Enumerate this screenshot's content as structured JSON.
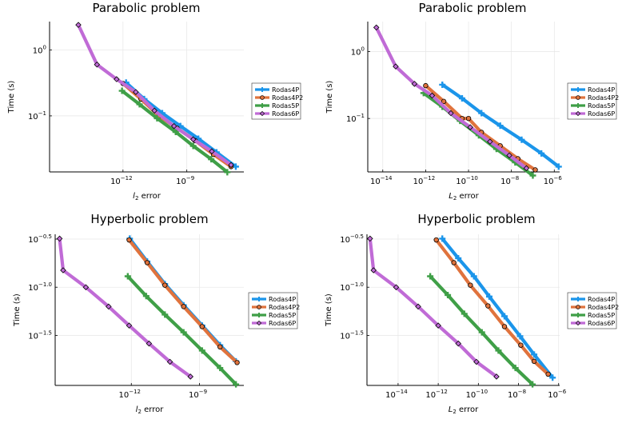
{
  "colors": {
    "Rodas4P": "#1b95ea",
    "Rodas4P2": "#e0733d",
    "Rodas5P": "#3f9f47",
    "Rodas6P": "#c06bd6"
  },
  "legend": [
    "Rodas4P",
    "Rodas4P2",
    "Rodas5P",
    "Rodas6P"
  ],
  "chart_data": [
    {
      "type": "line",
      "title": "Parabolic problem",
      "xlabel": "l2 error",
      "ylabel": "Time (s)",
      "xscale": "log",
      "yscale": "log",
      "legend_position": "outside-right",
      "xticks": [
        {
          "label": "10",
          "exp": "−12",
          "v": 1e-12
        },
        {
          "label": "10",
          "exp": "−9",
          "v": 1e-09
        }
      ],
      "yticks": [
        {
          "label": "10",
          "exp": "−1",
          "v": 0.1
        },
        {
          "label": "10",
          "exp": "0",
          "v": 1
        }
      ],
      "series": [
        {
          "name": "Rodas4P",
          "marker": "cross",
          "points": [
            [
              1.4e-12,
              0.32
            ],
            [
              1e-11,
              0.18
            ],
            [
              7e-11,
              0.11
            ],
            [
              5e-10,
              0.07
            ],
            [
              3.5e-09,
              0.045
            ],
            [
              2.5e-08,
              0.028
            ],
            [
              2e-07,
              0.017
            ]
          ]
        },
        {
          "name": "Rodas4P2",
          "marker": "circle",
          "points": [
            [
              1e-12,
              0.31
            ],
            [
              7e-12,
              0.18
            ],
            [
              5e-11,
              0.1
            ],
            [
              3.5e-10,
              0.065
            ],
            [
              2.5e-09,
              0.042
            ],
            [
              1.8e-08,
              0.026
            ],
            [
              1.2e-07,
              0.017
            ]
          ]
        },
        {
          "name": "Rodas5P",
          "marker": "cross",
          "points": [
            [
              9e-13,
              0.24
            ],
            [
              6e-12,
              0.15
            ],
            [
              4e-11,
              0.092
            ],
            [
              3e-10,
              0.057
            ],
            [
              2e-09,
              0.035
            ],
            [
              1.4e-08,
              0.022
            ],
            [
              8e-08,
              0.014
            ]
          ]
        },
        {
          "name": "Rodas6P",
          "marker": "diamond",
          "points": [
            [
              8e-15,
              2.4
            ],
            [
              6e-14,
              0.6
            ],
            [
              5e-13,
              0.36
            ],
            [
              4e-12,
              0.23
            ],
            [
              3e-11,
              0.12
            ],
            [
              2.5e-10,
              0.07
            ],
            [
              2e-09,
              0.044
            ],
            [
              1.5e-08,
              0.029
            ],
            [
              1.2e-07,
              0.018
            ]
          ]
        }
      ]
    },
    {
      "type": "line",
      "title": "Parabolic problem",
      "xlabel": "L2 error",
      "ylabel": "Time (s)",
      "xscale": "log",
      "yscale": "log",
      "legend_position": "outside-right",
      "xticks": [
        {
          "label": "10",
          "exp": "−14",
          "v": 1e-14
        },
        {
          "label": "10",
          "exp": "−12",
          "v": 1e-12
        },
        {
          "label": "10",
          "exp": "−10",
          "v": 1e-10
        },
        {
          "label": "10",
          "exp": "−8",
          "v": 1e-08
        },
        {
          "label": "10",
          "exp": "−6",
          "v": 1e-06
        }
      ],
      "yticks": [
        {
          "label": "10",
          "exp": "−1",
          "v": 0.1
        },
        {
          "label": "10",
          "exp": "0",
          "v": 1
        }
      ],
      "series": [
        {
          "name": "Rodas4P",
          "marker": "cross",
          "points": [
            [
              6e-12,
              0.32
            ],
            [
              5e-11,
              0.2
            ],
            [
              4e-10,
              0.12
            ],
            [
              3e-09,
              0.078
            ],
            [
              3e-08,
              0.048
            ],
            [
              2.5e-07,
              0.03
            ],
            [
              1.6e-06,
              0.019
            ]
          ]
        },
        {
          "name": "Rodas4P2",
          "marker": "circle",
          "points": [
            [
              1e-12,
              0.31
            ],
            [
              7e-12,
              0.18
            ],
            [
              5e-11,
              0.1
            ],
            [
              1e-10,
              0.1
            ],
            [
              4e-10,
              0.062
            ],
            [
              3e-09,
              0.039
            ],
            [
              2e-08,
              0.025
            ],
            [
              1.3e-07,
              0.017
            ]
          ]
        },
        {
          "name": "Rodas5P",
          "marker": "cross",
          "points": [
            [
              8e-13,
              0.24
            ],
            [
              6e-12,
              0.15
            ],
            [
              4e-11,
              0.092
            ],
            [
              3e-10,
              0.056
            ],
            [
              2e-09,
              0.035
            ],
            [
              1.5e-08,
              0.022
            ],
            [
              1e-07,
              0.014
            ]
          ]
        },
        {
          "name": "Rodas6P",
          "marker": "diamond",
          "points": [
            [
              5e-15,
              2.3
            ],
            [
              4e-14,
              0.6
            ],
            [
              3e-13,
              0.33
            ],
            [
              2e-12,
              0.22
            ],
            [
              1.5e-11,
              0.12
            ],
            [
              1.2e-10,
              0.074
            ],
            [
              1e-09,
              0.045
            ],
            [
              8e-09,
              0.028
            ],
            [
              5e-08,
              0.018
            ]
          ]
        }
      ]
    },
    {
      "type": "line",
      "title": "Hyperbolic problem",
      "xlabel": "l2 error",
      "ylabel": "Time (s)",
      "xscale": "log",
      "yscale": "log",
      "legend_position": "outside-right",
      "xticks": [
        {
          "label": "10",
          "exp": "−12",
          "v": 1e-12
        },
        {
          "label": "10",
          "exp": "−9",
          "v": 1e-09
        }
      ],
      "yticks": [
        {
          "label": "10",
          "exp": "−1.5",
          "v": 0.031623
        },
        {
          "label": "10",
          "exp": "−1.0",
          "v": 0.1
        },
        {
          "label": "10",
          "exp": "−0.5",
          "v": 0.316228
        }
      ],
      "series": [
        {
          "name": "Rodas4P",
          "marker": "cross",
          "points": [
            [
              8.5e-13,
              0.32
            ],
            [
              5e-12,
              0.185
            ],
            [
              3e-11,
              0.108
            ],
            [
              2e-10,
              0.065
            ],
            [
              1.3e-09,
              0.04
            ],
            [
              8e-09,
              0.025
            ],
            [
              4e-08,
              0.017
            ]
          ]
        },
        {
          "name": "Rodas4P2",
          "marker": "circle",
          "points": [
            [
              8e-13,
              0.31
            ],
            [
              5e-12,
              0.18
            ],
            [
              3e-11,
              0.105
            ],
            [
              2e-10,
              0.063
            ],
            [
              1.3e-09,
              0.039
            ],
            [
              8e-09,
              0.024
            ],
            [
              4.5e-08,
              0.0165
            ]
          ]
        },
        {
          "name": "Rodas5P",
          "marker": "cross",
          "points": [
            [
              7e-13,
              0.13
            ],
            [
              4.5e-12,
              0.081
            ],
            [
              3e-11,
              0.052
            ],
            [
              2e-10,
              0.034
            ],
            [
              1.3e-09,
              0.022
            ],
            [
              8e-09,
              0.0145
            ],
            [
              4e-08,
              0.0098
            ]
          ]
        },
        {
          "name": "Rodas6P",
          "marker": "diamond",
          "points": [
            [
              7e-16,
              0.32
            ],
            [
              1e-15,
              0.15
            ],
            [
              1e-14,
              0.1
            ],
            [
              1e-13,
              0.063
            ],
            [
              8e-13,
              0.04
            ],
            [
              6e-12,
              0.026
            ],
            [
              5e-11,
              0.0168
            ],
            [
              4e-10,
              0.0118
            ]
          ]
        }
      ]
    },
    {
      "type": "line",
      "title": "Hyperbolic problem",
      "xlabel": "L2 error",
      "ylabel": "Time (s)",
      "xscale": "log",
      "yscale": "log",
      "legend_position": "outside-right",
      "xticks": [
        {
          "label": "10",
          "exp": "−14",
          "v": 1e-14
        },
        {
          "label": "10",
          "exp": "−12",
          "v": 1e-12
        },
        {
          "label": "10",
          "exp": "−10",
          "v": 1e-10
        },
        {
          "label": "10",
          "exp": "−8",
          "v": 1e-08
        },
        {
          "label": "10",
          "exp": "−6",
          "v": 1e-06
        }
      ],
      "yticks": [
        {
          "label": "10",
          "exp": "−1.5",
          "v": 0.031623
        },
        {
          "label": "10",
          "exp": "−1.0",
          "v": 0.1
        },
        {
          "label": "10",
          "exp": "−0.5",
          "v": 0.316228
        }
      ],
      "series": [
        {
          "name": "Rodas4P",
          "marker": "cross",
          "points": [
            [
              1.6e-12,
              0.32
            ],
            [
              1e-11,
              0.2
            ],
            [
              6e-11,
              0.13
            ],
            [
              3.5e-10,
              0.08
            ],
            [
              2e-09,
              0.05
            ],
            [
              1.2e-08,
              0.031
            ],
            [
              6e-08,
              0.02
            ],
            [
              5e-07,
              0.0115
            ]
          ]
        },
        {
          "name": "Rodas4P2",
          "marker": "circle",
          "points": [
            [
              8e-13,
              0.31
            ],
            [
              6e-12,
              0.18
            ],
            [
              4e-11,
              0.105
            ],
            [
              3e-10,
              0.064
            ],
            [
              2e-09,
              0.039
            ],
            [
              1.3e-08,
              0.025
            ],
            [
              6e-08,
              0.017
            ],
            [
              3e-07,
              0.0125
            ]
          ]
        },
        {
          "name": "Rodas5P",
          "marker": "cross",
          "points": [
            [
              4e-13,
              0.13
            ],
            [
              3e-12,
              0.083
            ],
            [
              2e-11,
              0.053
            ],
            [
              1.5e-10,
              0.034
            ],
            [
              1e-09,
              0.022
            ],
            [
              7e-09,
              0.0145
            ],
            [
              5e-08,
              0.0098
            ]
          ]
        },
        {
          "name": "Rodas6P",
          "marker": "diamond",
          "points": [
            [
              4e-16,
              0.32
            ],
            [
              6e-16,
              0.15
            ],
            [
              8e-15,
              0.1
            ],
            [
              1e-13,
              0.063
            ],
            [
              1e-12,
              0.04
            ],
            [
              1e-11,
              0.026
            ],
            [
              8e-11,
              0.0168
            ],
            [
              8e-10,
              0.0118
            ]
          ]
        }
      ]
    }
  ]
}
